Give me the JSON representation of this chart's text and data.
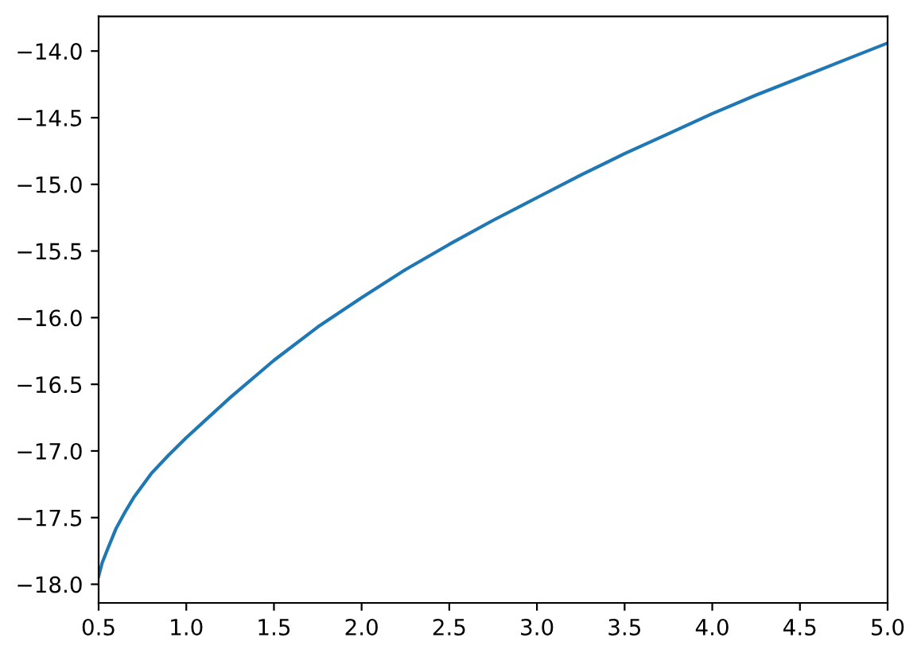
{
  "chart_data": {
    "type": "line",
    "x": [
      0.5,
      0.52,
      0.55,
      0.6,
      0.65,
      0.7,
      0.75,
      0.8,
      0.9,
      1.0,
      1.25,
      1.5,
      1.75,
      2.0,
      2.25,
      2.5,
      2.75,
      3.0,
      3.25,
      3.5,
      3.75,
      4.0,
      4.25,
      4.5,
      4.75,
      5.0
    ],
    "series": [
      {
        "color": "#1f77b4",
        "values": [
          -17.94,
          -17.84,
          -17.74,
          -17.58,
          -17.46,
          -17.35,
          -17.26,
          -17.17,
          -17.03,
          -16.9,
          -16.6,
          -16.32,
          -16.07,
          -15.85,
          -15.64,
          -15.45,
          -15.27,
          -15.1,
          -14.93,
          -14.77,
          -14.62,
          -14.47,
          -14.33,
          -14.2,
          -14.07,
          -13.94
        ]
      }
    ],
    "xlim": [
      0.5,
      5.0
    ],
    "xticks": [
      {
        "value": 0.5,
        "label": "0.5"
      },
      {
        "value": 1,
        "label": "1.0"
      },
      {
        "value": 1.5,
        "label": "1.5"
      },
      {
        "value": 2,
        "label": "2.0"
      },
      {
        "value": 2.5,
        "label": "2.5"
      },
      {
        "value": 3,
        "label": "3.0"
      },
      {
        "value": 3.5,
        "label": "3.5"
      },
      {
        "value": 4,
        "label": "4.0"
      },
      {
        "value": 4.5,
        "label": "4.5"
      },
      {
        "value": 5,
        "label": "5.0"
      }
    ],
    "ylim": [
      -18.14,
      -13.74
    ],
    "yticks": [
      {
        "value": -18.0,
        "label": "−18.0"
      },
      {
        "value": -17.5,
        "label": "−17.5"
      },
      {
        "value": -17.0,
        "label": "−17.0"
      },
      {
        "value": -16.5,
        "label": "−16.5"
      },
      {
        "value": -16.0,
        "label": "−16.0"
      },
      {
        "value": -15.5,
        "label": "−15.5"
      },
      {
        "value": -15.0,
        "label": "−15.0"
      },
      {
        "value": -14.5,
        "label": "−14.5"
      },
      {
        "value": -14.0,
        "label": "−14.0"
      }
    ],
    "grid": false,
    "marker": "none",
    "line_style": "solid"
  }
}
